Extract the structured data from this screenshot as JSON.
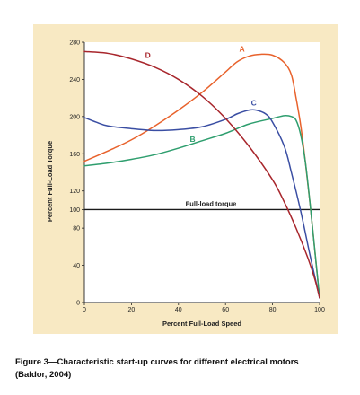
{
  "chart_data": {
    "type": "line",
    "xlabel": "Percent Full-Load Speed",
    "ylabel": "Percent Full-Load Torque",
    "xlim": [
      0,
      100
    ],
    "ylim": [
      0,
      280
    ],
    "x_ticks": [
      "0",
      "20",
      "40",
      "60",
      "80",
      "100"
    ],
    "y_ticks": [
      "0",
      "40",
      "80",
      "100",
      "120",
      "160",
      "200",
      "240",
      "280"
    ],
    "reference_line": {
      "label": "Full-load torque",
      "y": 100
    },
    "series": [
      {
        "name": "A",
        "color": "#e8622c",
        "x": [
          0,
          10,
          20,
          30,
          40,
          50,
          60,
          65,
          70,
          75,
          80,
          85,
          88,
          90,
          92,
          94,
          96,
          98,
          100
        ],
        "y": [
          152,
          163,
          175,
          190,
          207,
          226,
          248,
          259,
          265,
          267,
          266,
          258,
          245,
          220,
          190,
          150,
          105,
          55,
          5
        ]
      },
      {
        "name": "B",
        "color": "#2e9e6e",
        "x": [
          0,
          10,
          20,
          30,
          40,
          50,
          60,
          70,
          80,
          85,
          88,
          90,
          92,
          94,
          96,
          98,
          100
        ],
        "y": [
          147,
          150,
          154,
          159,
          166,
          174,
          182,
          192,
          198,
          201,
          200,
          196,
          180,
          150,
          105,
          55,
          5
        ]
      },
      {
        "name": "C",
        "color": "#3a4ea3",
        "x": [
          0,
          5,
          10,
          20,
          30,
          40,
          50,
          60,
          65,
          70,
          73,
          77,
          80,
          85,
          88,
          92,
          96,
          100
        ],
        "y": [
          199,
          194,
          190,
          187,
          185,
          186,
          189,
          197,
          203,
          207,
          207,
          203,
          194,
          168,
          140,
          98,
          50,
          5
        ]
      },
      {
        "name": "D",
        "color": "#a8262c",
        "x": [
          0,
          10,
          20,
          30,
          40,
          50,
          60,
          70,
          80,
          85,
          90,
          95,
          98,
          100
        ],
        "y": [
          270,
          268,
          262,
          253,
          240,
          222,
          198,
          168,
          132,
          108,
          80,
          48,
          25,
          5
        ]
      }
    ]
  },
  "caption": {
    "line1": "Figure 3—Characteristic start-up curves for different electrical motors",
    "line2": "(Baldor, 2004)"
  }
}
